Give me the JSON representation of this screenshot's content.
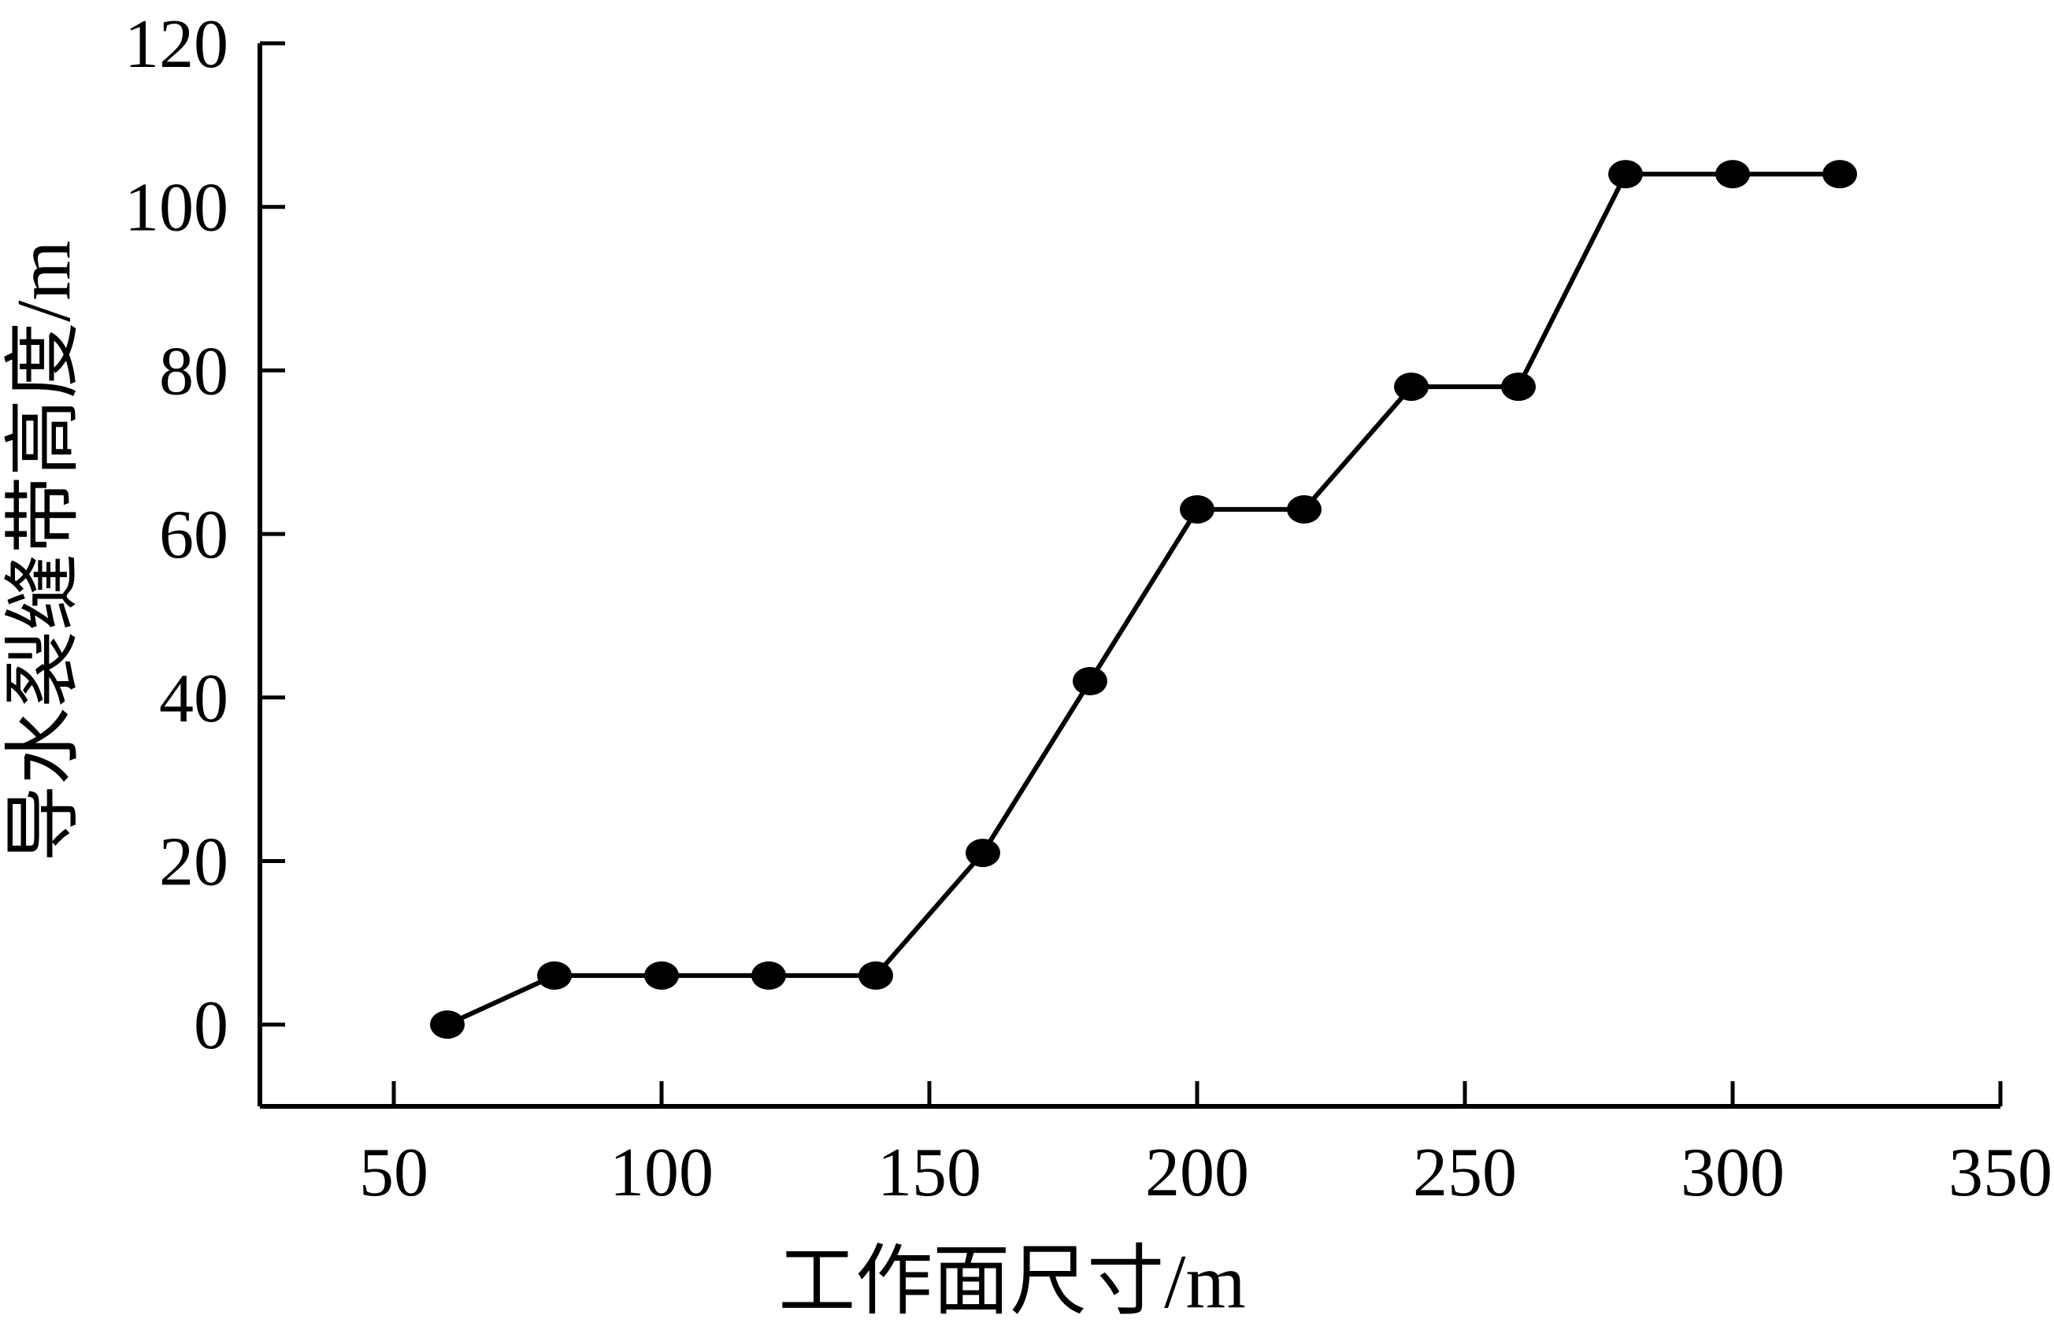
{
  "chart_data": {
    "type": "line",
    "title": "",
    "xlabel": "工作面尺寸/m",
    "ylabel": "导水裂缝带高度/m",
    "xlim": [
      25,
      350
    ],
    "ylim": [
      -10,
      120
    ],
    "x_ticks": [
      50,
      100,
      150,
      200,
      250,
      300,
      350
    ],
    "y_ticks": [
      0,
      20,
      40,
      60,
      80,
      100,
      120
    ],
    "grid": false,
    "series": [
      {
        "x": [
          60,
          80,
          100,
          120,
          140,
          160,
          180,
          200,
          220,
          240,
          260,
          280,
          300,
          320
        ],
        "y": [
          0,
          6,
          6,
          6,
          6,
          21,
          42,
          63,
          63,
          78,
          78,
          104,
          104,
          104
        ]
      }
    ],
    "colors": {
      "line": "#000000",
      "marker": "#000000"
    }
  }
}
